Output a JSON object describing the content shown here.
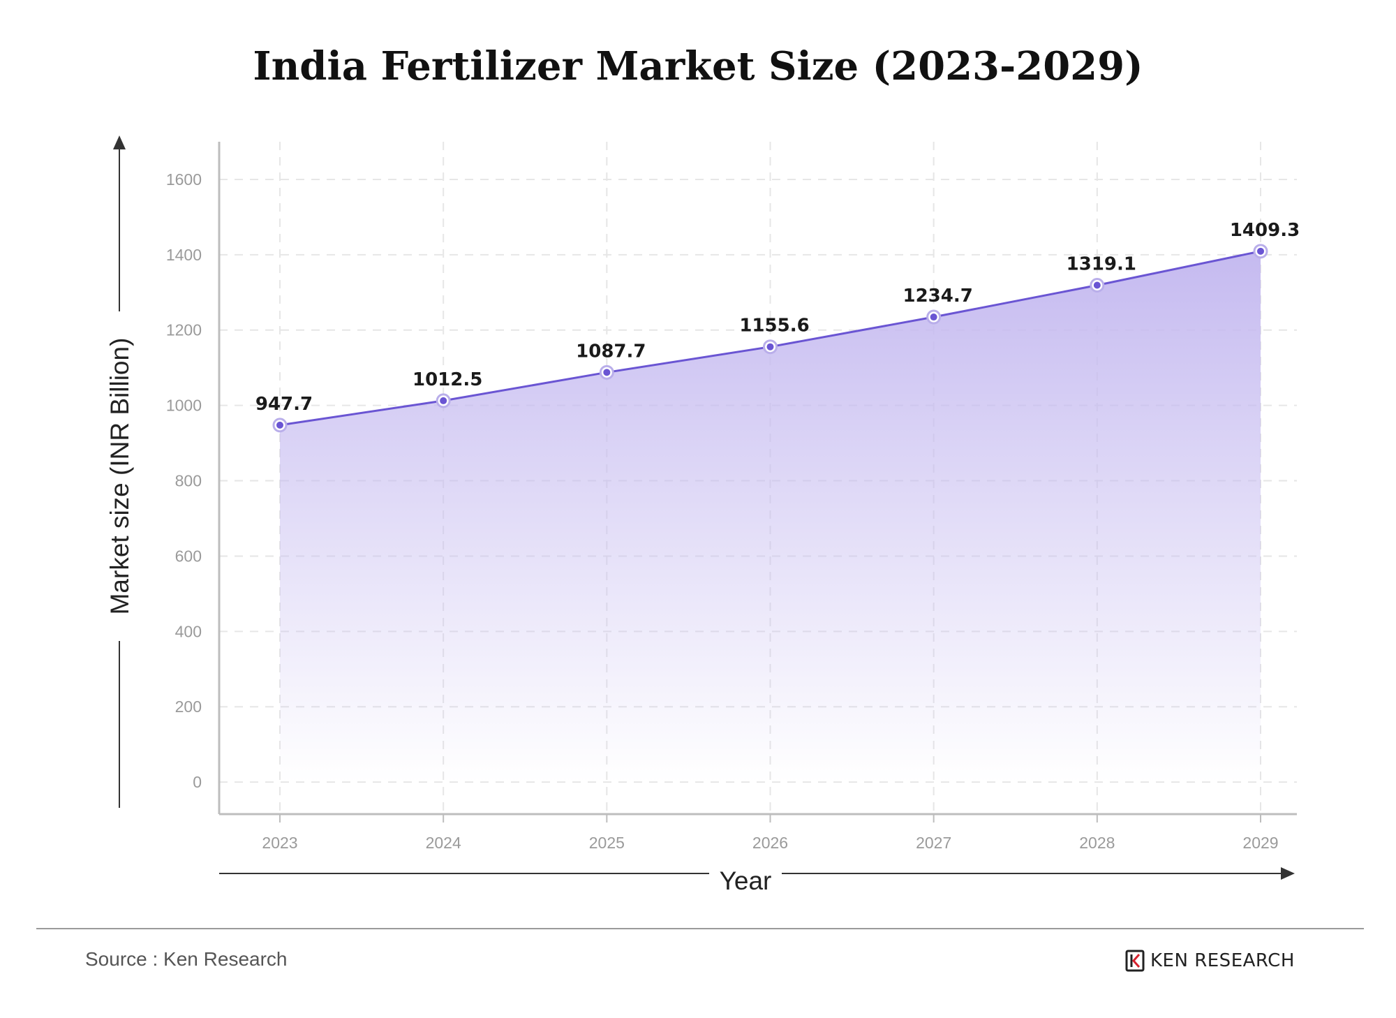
{
  "chart_data": {
    "type": "area",
    "title": "India Fertilizer Market Size (2023-2029)",
    "xlabel": "Year",
    "ylabel": "Market size (INR Billion)",
    "categories": [
      "2023",
      "2024",
      "2025",
      "2026",
      "2027",
      "2028",
      "2029"
    ],
    "values": [
      947.7,
      1012.5,
      1087.7,
      1155.6,
      1234.7,
      1319.1,
      1409.3
    ],
    "data_labels": [
      "947.7",
      "1012.5",
      "1087.7",
      "1155.6",
      "1234.7",
      "1319.1",
      "1409.3"
    ],
    "yticks": [
      0,
      200,
      400,
      600,
      800,
      1000,
      1200,
      1400,
      1600
    ],
    "ylim": [
      -85,
      1700
    ],
    "grid": true,
    "colors": {
      "line": "#6a55d3",
      "fill": "#c5baf0",
      "marker": "#6a55d3"
    }
  },
  "footer": {
    "source": "Source : Ken Research",
    "brand": "KEN RESEARCH"
  }
}
